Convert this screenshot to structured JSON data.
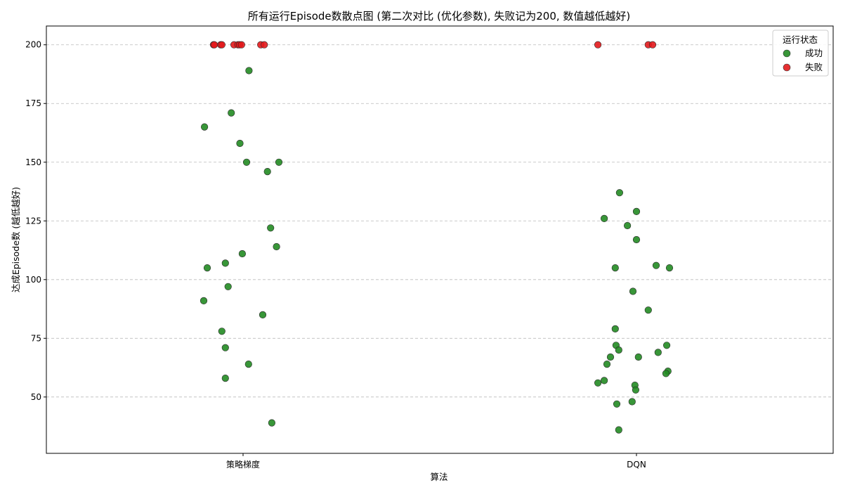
{
  "chart_data": {
    "type": "scatter",
    "title": "所有运行Episode数散点图 (第二次对比 (优化参数), 失败记为200, 数值越低越好)",
    "xlabel": "算法",
    "ylabel": "达成Episode数 (越低越好)",
    "categories": [
      "策略梯度",
      "DQN"
    ],
    "ylim": [
      26,
      208
    ],
    "yticks": [
      50,
      75,
      100,
      125,
      150,
      175,
      200
    ],
    "grid": true,
    "legend_position": "top-right",
    "legend": {
      "title": "运行状态",
      "entries": [
        {
          "label": "成功",
          "color": "#228B22"
        },
        {
          "label": "失败",
          "color": "#E31A1C"
        }
      ]
    },
    "series": [
      {
        "name": "成功",
        "color": "#228B22",
        "points": [
          {
            "category": "策略梯度",
            "jitter": 0.015,
            "y": 189
          },
          {
            "category": "策略梯度",
            "jitter": -0.03,
            "y": 171
          },
          {
            "category": "策略梯度",
            "jitter": -0.098,
            "y": 165
          },
          {
            "category": "策略梯度",
            "jitter": -0.008,
            "y": 158
          },
          {
            "category": "策略梯度",
            "jitter": 0.009,
            "y": 150
          },
          {
            "category": "策略梯度",
            "jitter": 0.091,
            "y": 150
          },
          {
            "category": "策略梯度",
            "jitter": 0.062,
            "y": 146
          },
          {
            "category": "策略梯度",
            "jitter": 0.07,
            "y": 122
          },
          {
            "category": "策略梯度",
            "jitter": 0.085,
            "y": 114
          },
          {
            "category": "策略梯度",
            "jitter": -0.002,
            "y": 111
          },
          {
            "category": "策略梯度",
            "jitter": -0.045,
            "y": 107
          },
          {
            "category": "策略梯度",
            "jitter": -0.091,
            "y": 105
          },
          {
            "category": "策略梯度",
            "jitter": -0.038,
            "y": 97
          },
          {
            "category": "策略梯度",
            "jitter": -0.1,
            "y": 91
          },
          {
            "category": "策略梯度",
            "jitter": 0.05,
            "y": 85
          },
          {
            "category": "策略梯度",
            "jitter": -0.054,
            "y": 78
          },
          {
            "category": "策略梯度",
            "jitter": -0.045,
            "y": 71
          },
          {
            "category": "策略梯度",
            "jitter": 0.014,
            "y": 64
          },
          {
            "category": "策略梯度",
            "jitter": -0.045,
            "y": 58
          },
          {
            "category": "策略梯度",
            "jitter": 0.073,
            "y": 39
          },
          {
            "category": "DQN",
            "jitter": -0.043,
            "y": 137
          },
          {
            "category": "DQN",
            "jitter": 0.0,
            "y": 129
          },
          {
            "category": "DQN",
            "jitter": -0.082,
            "y": 126
          },
          {
            "category": "DQN",
            "jitter": -0.023,
            "y": 123
          },
          {
            "category": "DQN",
            "jitter": 0.0,
            "y": 117
          },
          {
            "category": "DQN",
            "jitter": 0.05,
            "y": 106
          },
          {
            "category": "DQN",
            "jitter": -0.054,
            "y": 105
          },
          {
            "category": "DQN",
            "jitter": 0.084,
            "y": 105
          },
          {
            "category": "DQN",
            "jitter": -0.009,
            "y": 95
          },
          {
            "category": "DQN",
            "jitter": 0.03,
            "y": 87
          },
          {
            "category": "DQN",
            "jitter": -0.054,
            "y": 79
          },
          {
            "category": "DQN",
            "jitter": -0.052,
            "y": 72
          },
          {
            "category": "DQN",
            "jitter": 0.077,
            "y": 72
          },
          {
            "category": "DQN",
            "jitter": -0.045,
            "y": 70
          },
          {
            "category": "DQN",
            "jitter": 0.055,
            "y": 69
          },
          {
            "category": "DQN",
            "jitter": -0.066,
            "y": 67
          },
          {
            "category": "DQN",
            "jitter": 0.005,
            "y": 67
          },
          {
            "category": "DQN",
            "jitter": -0.075,
            "y": 64
          },
          {
            "category": "DQN",
            "jitter": 0.08,
            "y": 61
          },
          {
            "category": "DQN",
            "jitter": 0.075,
            "y": 60
          },
          {
            "category": "DQN",
            "jitter": -0.082,
            "y": 57
          },
          {
            "category": "DQN",
            "jitter": -0.098,
            "y": 56
          },
          {
            "category": "DQN",
            "jitter": -0.004,
            "y": 55
          },
          {
            "category": "DQN",
            "jitter": -0.002,
            "y": 53
          },
          {
            "category": "DQN",
            "jitter": -0.011,
            "y": 48
          },
          {
            "category": "DQN",
            "jitter": -0.05,
            "y": 47
          },
          {
            "category": "DQN",
            "jitter": -0.045,
            "y": 36
          }
        ]
      },
      {
        "name": "失败",
        "color": "#E31A1C",
        "points": [
          {
            "category": "策略梯度",
            "jitter": -0.075,
            "y": 200
          },
          {
            "category": "策略梯度",
            "jitter": -0.073,
            "y": 200
          },
          {
            "category": "策略梯度",
            "jitter": -0.057,
            "y": 200
          },
          {
            "category": "策略梯度",
            "jitter": -0.054,
            "y": 200
          },
          {
            "category": "策略梯度",
            "jitter": -0.023,
            "y": 200
          },
          {
            "category": "策略梯度",
            "jitter": -0.013,
            "y": 200
          },
          {
            "category": "策略梯度",
            "jitter": -0.009,
            "y": 200
          },
          {
            "category": "策略梯度",
            "jitter": -0.004,
            "y": 200
          },
          {
            "category": "策略梯度",
            "jitter": 0.045,
            "y": 200
          },
          {
            "category": "策略梯度",
            "jitter": 0.054,
            "y": 200
          },
          {
            "category": "DQN",
            "jitter": -0.098,
            "y": 200
          },
          {
            "category": "DQN",
            "jitter": 0.03,
            "y": 200
          },
          {
            "category": "DQN",
            "jitter": 0.041,
            "y": 200
          }
        ]
      }
    ]
  }
}
